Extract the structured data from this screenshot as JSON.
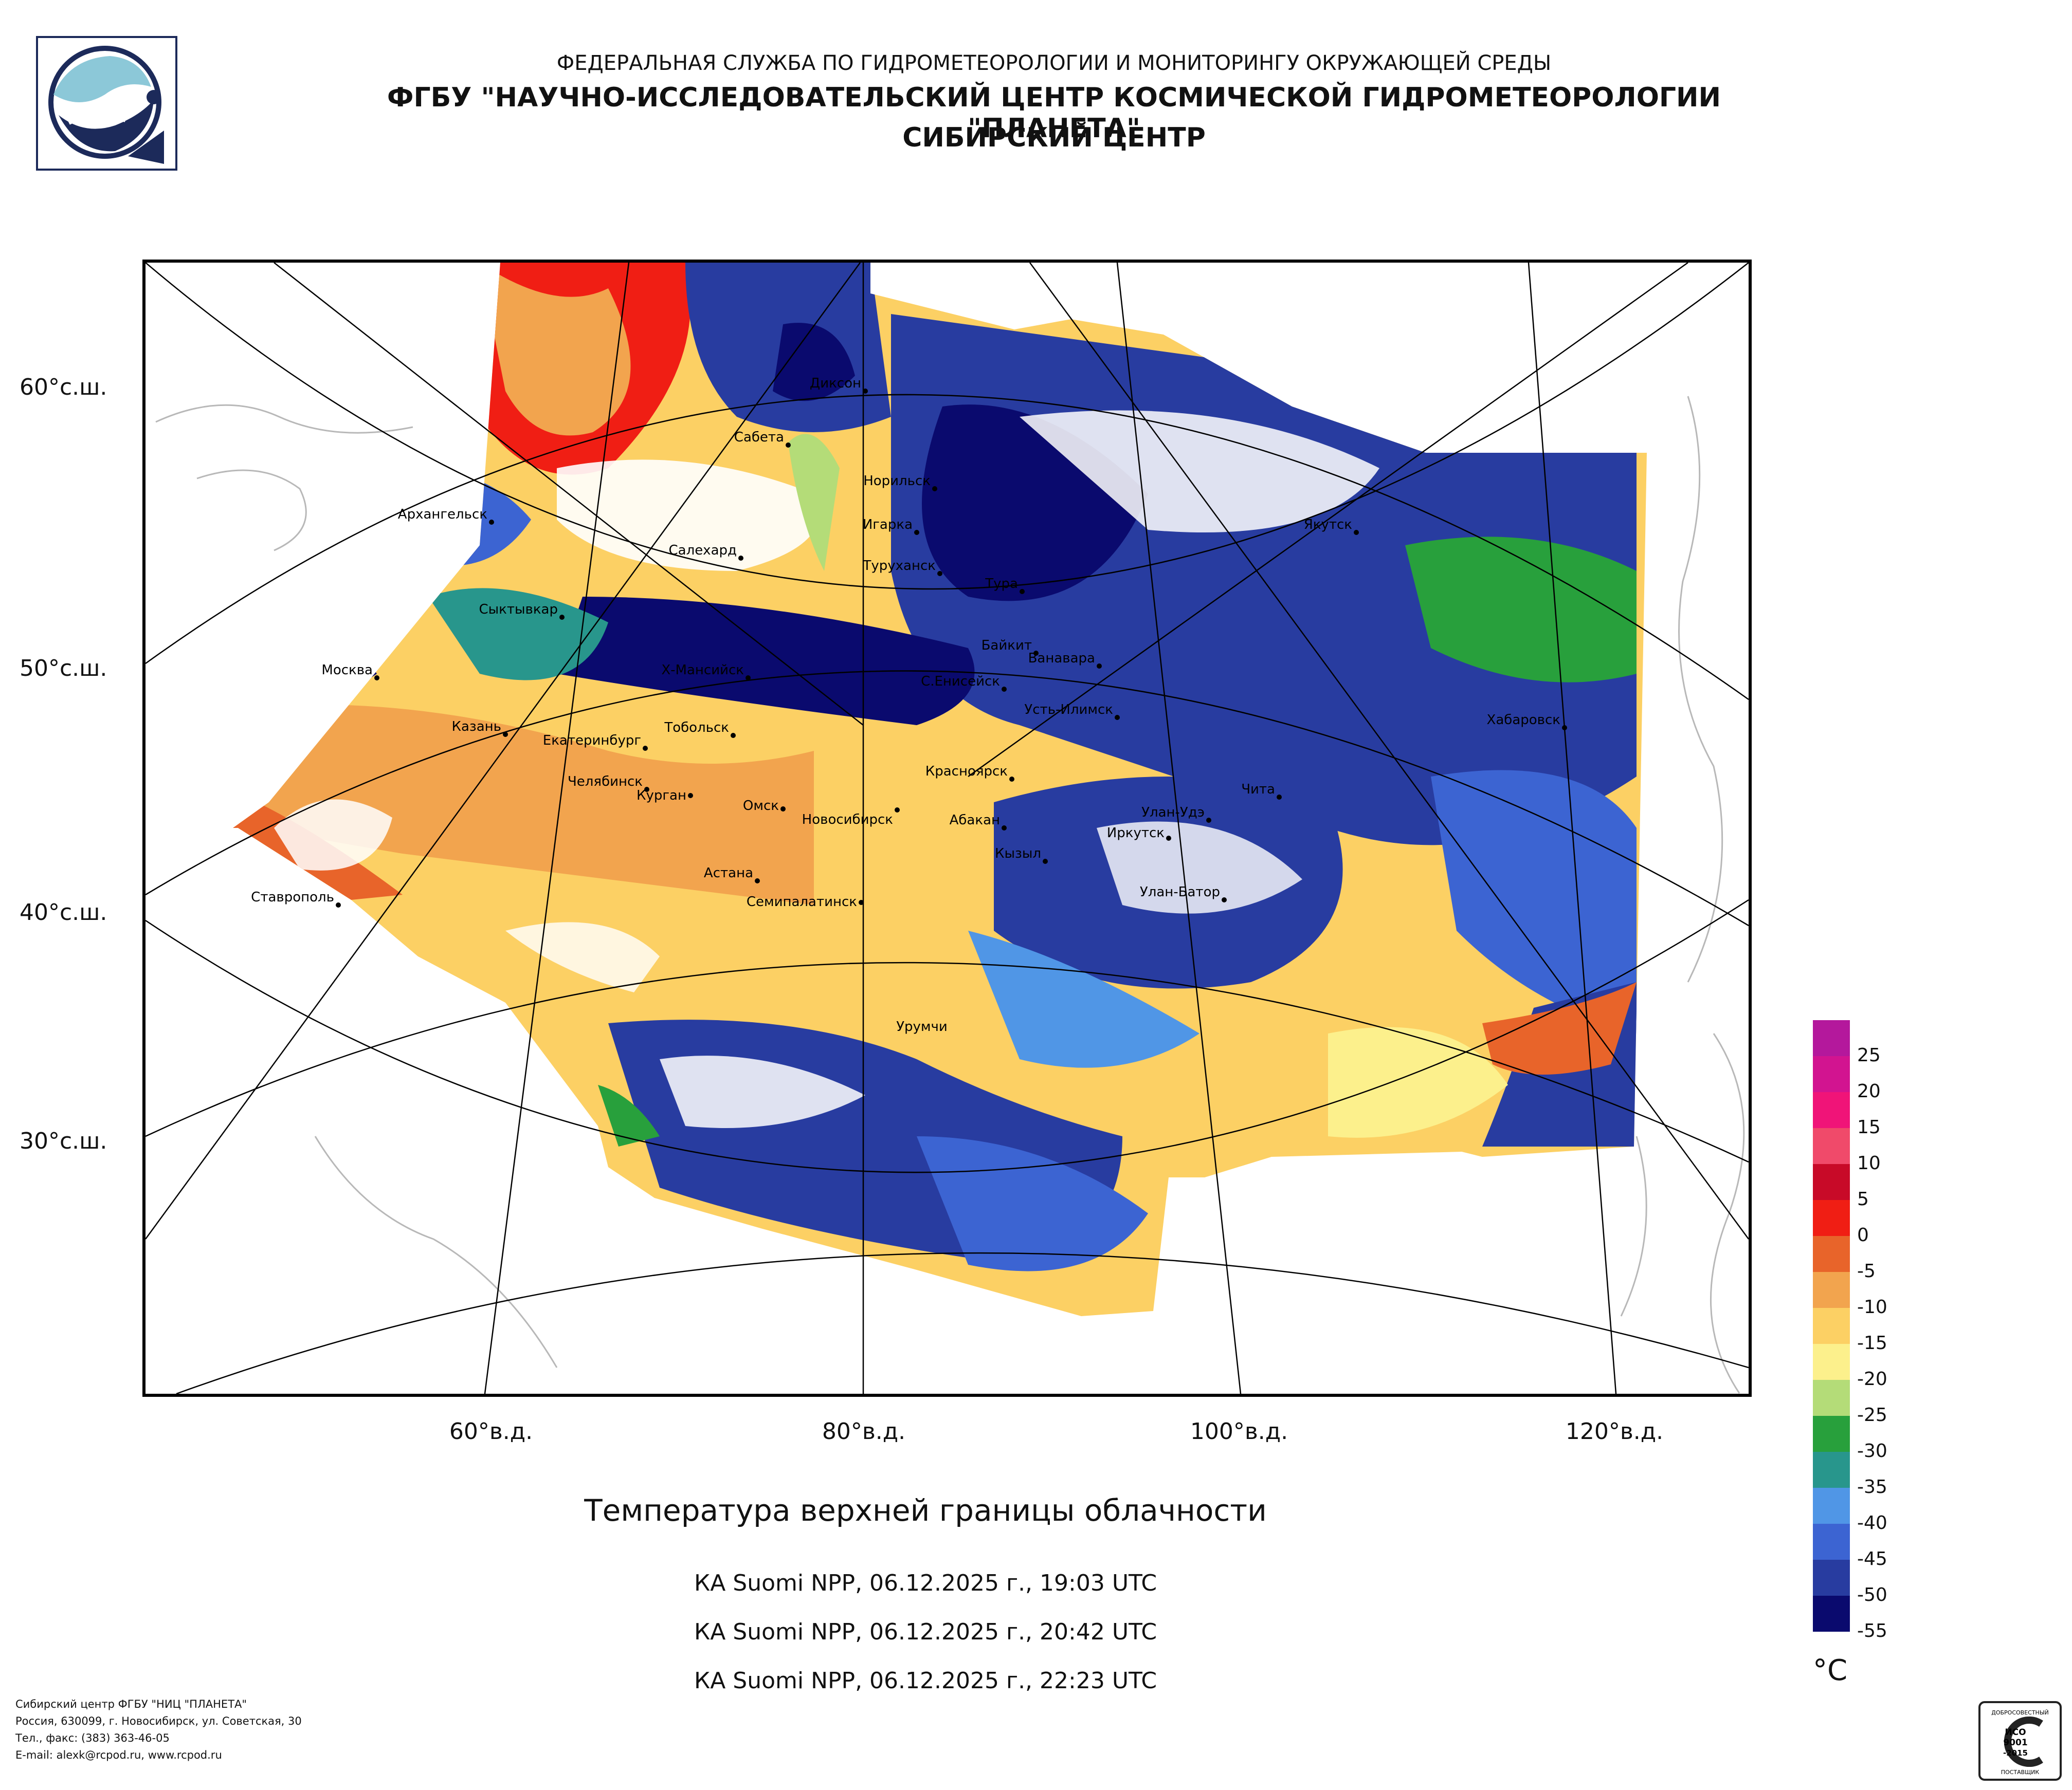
{
  "header": {
    "line1": "ФЕДЕРАЛЬНАЯ СЛУЖБА ПО ГИДРОМЕТЕОРОЛОГИИ И МОНИТОРИНГУ ОКРУЖАЮЩЕЙ СРЕДЫ",
    "line2": "ФГБУ \"НАУЧНО-ИССЛЕДОВАТЕЛЬСКИЙ ЦЕНТР КОСМИЧЕСКОЙ ГИДРОМЕТЕОРОЛОГИИ \"ПЛАНЕТА\"",
    "line3": "СИБИРСКИЙ ЦЕНТР"
  },
  "lat_labels": [
    "60°с.ш.",
    "50°с.ш.",
    "40°с.ш.",
    "30°с.ш."
  ],
  "lon_labels": [
    "60°в.д.",
    "80°в.д.",
    "100°в.д.",
    "120°в.д."
  ],
  "cities": [
    "Диксон",
    "Сабета",
    "Норильск",
    "Игарка",
    "Туруханск",
    "Тура",
    "Якутск",
    "Архангельск",
    "Салехард",
    "Сыктывкар",
    "Москва",
    "Х-Мансийск",
    "Байкит",
    "Ванавара",
    "С.Енисейск",
    "Усть-Илимск",
    "Хабаровск",
    "Казань",
    "Екатеринбург",
    "Тобольск",
    "Челябинск",
    "Курган",
    "Омск",
    "Новосибирск",
    "Красноярск",
    "Чита",
    "Улан-Удэ",
    "Абакан",
    "Иркутск",
    "Кызыл",
    "Ставрополь",
    "Астана",
    "Семипалатинск",
    "Улан-Батор",
    "Урумчи"
  ],
  "title": "Температура верхней границы облачности",
  "passes": [
    "КА Suomi NPP, 06.12.2025 г., 19:03 UTC",
    "КА Suomi NPP, 06.12.2025 г., 20:42 UTC",
    "КА Suomi NPP, 06.12.2025 г., 22:23 UTC"
  ],
  "colorbar": {
    "ticks": [
      "25",
      "20",
      "15",
      "10",
      "5",
      "0",
      "-5",
      "-10",
      "-15",
      "-20",
      "-25",
      "-30",
      "-35",
      "-40",
      "-45",
      "-50",
      "-55"
    ],
    "colors": [
      "#b4189c",
      "#d21490",
      "#f01478",
      "#f04a6a",
      "#c80a28",
      "#f01e14",
      "#e8642a",
      "#f2a44e",
      "#fcd064",
      "#fcf08c",
      "#b4dc78",
      "#28a03c",
      "#28968c",
      "#5096e6",
      "#3c64d2",
      "#283ca0",
      "#0a0a6e"
    ],
    "unit": "°C"
  },
  "footer": [
    "Сибирский центр ФГБУ \"НИЦ \"ПЛАНЕТА\"",
    "Россия, 630099, г. Новосибирск, ул. Советская, 30",
    "Тел., факс: (383) 363-46-05",
    "E-mail: alexk@rcpod.ru, www.rcpod.ru"
  ],
  "cert": {
    "top": "ДОБРОСОВЕСТНЫЙ",
    "mid1": "ИСО",
    "mid2": "9001",
    "mid3": "-2015",
    "bottom": "ПОСТАВЩИК"
  }
}
